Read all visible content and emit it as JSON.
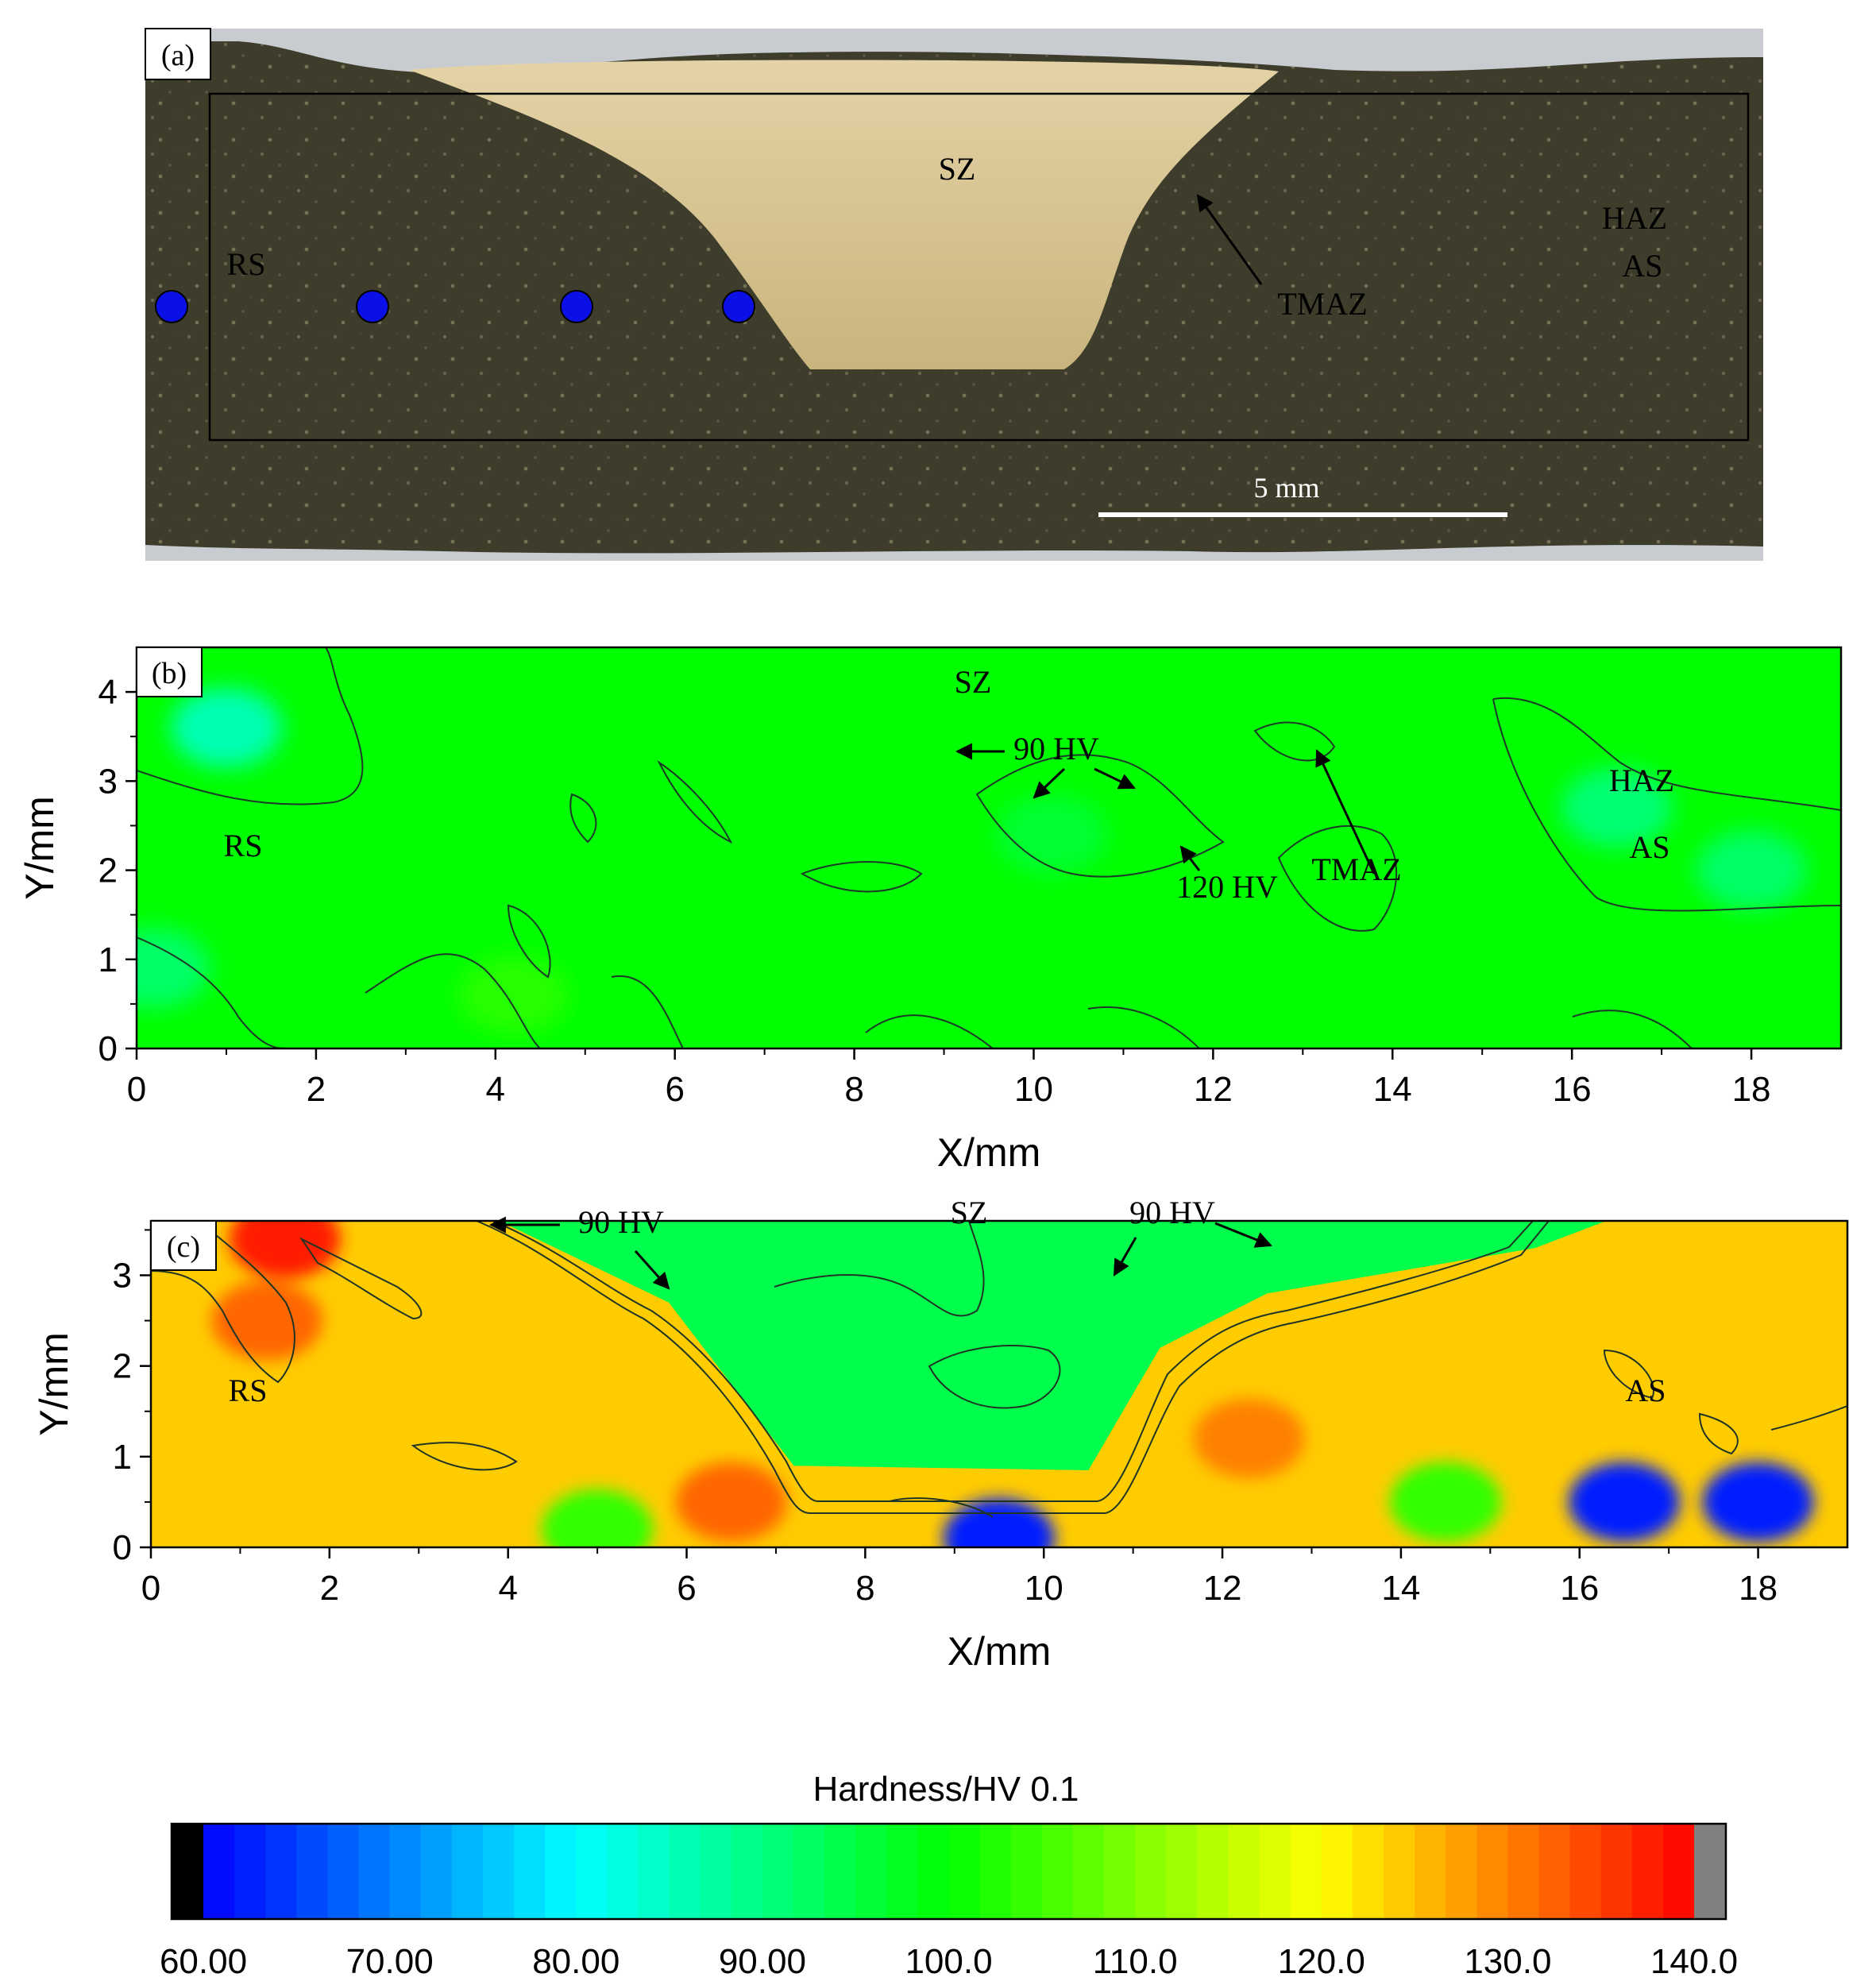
{
  "panels": {
    "a": {
      "tag": "(a)",
      "labels": {
        "sz": "SZ",
        "rs": "RS",
        "haz": "HAZ",
        "as": "AS",
        "tmaz": "TMAZ"
      },
      "scale_bar": "5 mm",
      "colors": {
        "specimen_dark": "#3e3d2c",
        "stir_zone": "#d9c79a",
        "mount": "#c8ccd0",
        "markers": "#0b10e6"
      }
    },
    "b": {
      "tag": "(b)",
      "labels": {
        "sz": "SZ",
        "rs": "RS",
        "haz": "HAZ",
        "as": "AS",
        "tmaz": "TMAZ",
        "hv90": "90 HV",
        "hv120": "120 HV"
      }
    },
    "c": {
      "tag": "(c)",
      "labels": {
        "sz": "SZ",
        "rs": "RS",
        "as": "AS",
        "hv90_left": "90 HV",
        "hv90_right": "90 HV"
      }
    }
  },
  "chart_data": [
    {
      "type": "heatmap",
      "panel": "b",
      "xlabel": "X/mm",
      "ylabel": "Y/mm",
      "xlim": [
        0,
        19
      ],
      "ylim": [
        0,
        4.5
      ],
      "xticks": [
        "0",
        "2",
        "4",
        "6",
        "8",
        "10",
        "12",
        "14",
        "16",
        "18"
      ],
      "yticks": [
        "0",
        "1",
        "2",
        "3",
        "4"
      ],
      "background_hardness": 100,
      "features": [
        {
          "x": 1.0,
          "y": 3.6,
          "hardness": 86
        },
        {
          "x": 16.5,
          "y": 2.7,
          "hardness": 91
        },
        {
          "x": 18.0,
          "y": 2.0,
          "hardness": 92
        },
        {
          "x": 10.2,
          "y": 2.4,
          "hardness": 96
        },
        {
          "x": 0.2,
          "y": 0.9,
          "hardness": 92
        },
        {
          "x": 4.2,
          "y": 0.6,
          "hardness": 103
        }
      ]
    },
    {
      "type": "heatmap",
      "panel": "c",
      "xlabel": "X/mm",
      "ylabel": "Y/mm",
      "xlim": [
        0,
        19
      ],
      "ylim": [
        0,
        3.6
      ],
      "xticks": [
        "0",
        "2",
        "4",
        "6",
        "8",
        "10",
        "12",
        "14",
        "16",
        "18"
      ],
      "yticks": [
        "0",
        "1",
        "2",
        "3"
      ],
      "base_metal_hardness": 124,
      "stir_zone_hardness": 94,
      "features": [
        {
          "x": 1.5,
          "y": 3.4,
          "hardness": 138
        },
        {
          "x": 1.3,
          "y": 2.5,
          "hardness": 132
        },
        {
          "x": 9.5,
          "y": 0.1,
          "hardness": 62
        },
        {
          "x": 16.5,
          "y": 0.5,
          "hardness": 62
        },
        {
          "x": 18.0,
          "y": 0.5,
          "hardness": 62
        },
        {
          "x": 14.5,
          "y": 0.5,
          "hardness": 104
        },
        {
          "x": 5.0,
          "y": 0.2,
          "hardness": 104
        },
        {
          "x": 6.5,
          "y": 0.5,
          "hardness": 132
        },
        {
          "x": 12.3,
          "y": 1.2,
          "hardness": 130
        }
      ]
    },
    {
      "type": "colorbar",
      "title": "Hardness/HV 0.1",
      "range": [
        60,
        140
      ],
      "tick_labels": [
        "60.00",
        "70.00",
        "80.00",
        "90.00",
        "100.0",
        "110.0",
        "120.0",
        "130.0",
        "140.0"
      ],
      "colormap": [
        "#0000ff",
        "#00ffff",
        "#00ff00",
        "#ffff00",
        "#ff0000"
      ],
      "under_color": "#000000",
      "over_color": "#808080"
    }
  ]
}
